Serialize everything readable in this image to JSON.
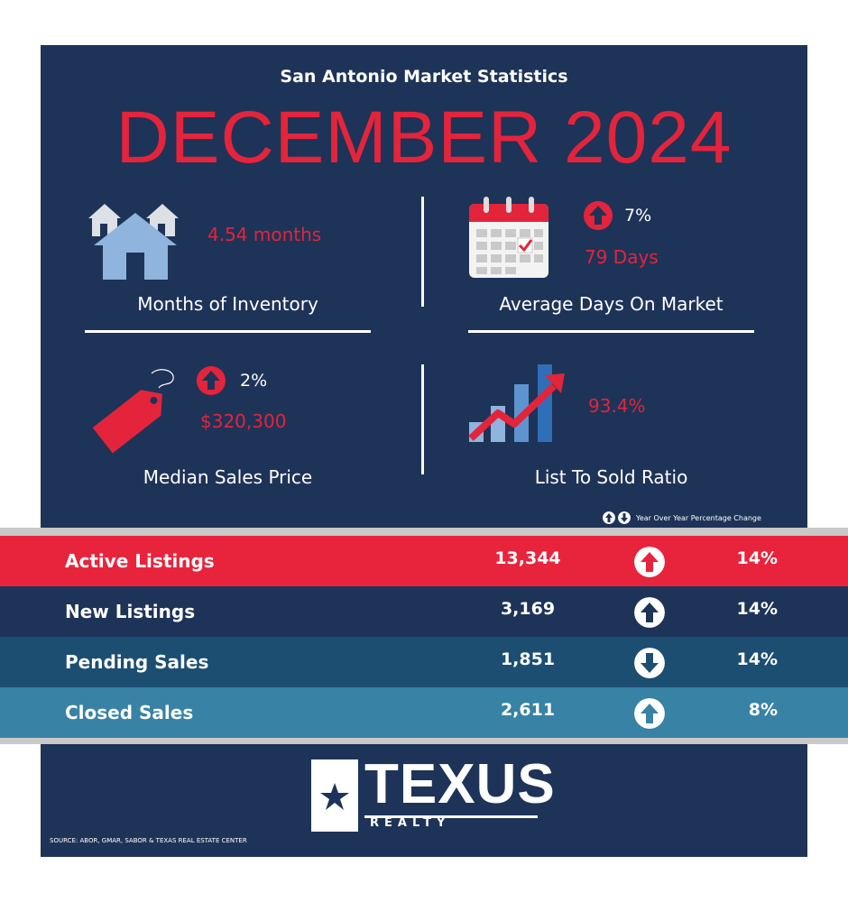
{
  "header": {
    "subtitle": "San Antonio Market Statistics",
    "title": "DECEMBER 2024"
  },
  "stats": {
    "inventory": {
      "value": "4.54 months",
      "label": "Months of Inventory"
    },
    "dom": {
      "change": "7%",
      "value": "79 Days",
      "label": "Average Days On Market"
    },
    "price": {
      "change": "2%",
      "value": "$320,300",
      "label": "Median Sales Price"
    },
    "ratio": {
      "value": "93.4%",
      "label": "List To Sold Ratio"
    }
  },
  "legend": {
    "text": "Year  Over Year Percentage Change"
  },
  "rows": [
    {
      "label": "Active Listings",
      "value": "13,344",
      "direction": "up",
      "pct": "14%",
      "color": "#e8243c"
    },
    {
      "label": "New Listings",
      "value": "3,169",
      "direction": "up",
      "pct": "14%",
      "color": "#1e3358"
    },
    {
      "label": "Pending Sales",
      "value": "1,851",
      "direction": "down",
      "pct": "14%",
      "color": "#1c4e72"
    },
    {
      "label": "Closed Sales",
      "value": "2,611",
      "direction": "up",
      "pct": "8%",
      "color": "#3882a5"
    }
  ],
  "footer": {
    "logo_main": "TEXUS",
    "logo_sub": "REALTY",
    "source": "SOURCE: ABOR, GMAR, SABOR & TEXAS REAL ESTATE CENTER"
  },
  "colors": {
    "navy": "#1e3358",
    "red": "#e3243b",
    "accent_light": "#8fb4dd"
  }
}
